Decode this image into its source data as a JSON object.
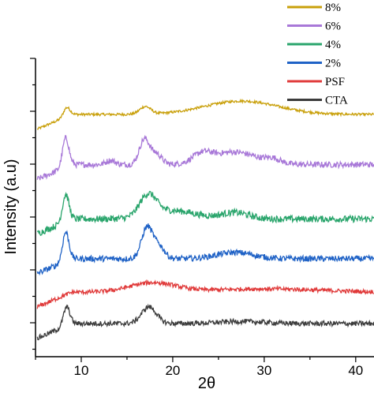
{
  "chart_data": {
    "type": "line",
    "xlabel": "2θ",
    "ylabel": "Intensity (a.u)",
    "xlim": [
      5,
      42
    ],
    "x_ticks": [
      10,
      20,
      30,
      40
    ],
    "y_ticks_shown": false,
    "legend_position": "top-right",
    "series": [
      {
        "name": "8%",
        "color": "#C9A00B",
        "offset": 5,
        "noise": 0.03,
        "peaks": [
          [
            8.4,
            0.22,
            0.35
          ],
          [
            17.0,
            0.18,
            0.6
          ],
          [
            27.5,
            0.32,
            4.0
          ]
        ]
      },
      {
        "name": "6%",
        "color": "#A878D8",
        "offset": 3.8,
        "noise": 0.07,
        "peaks": [
          [
            8.3,
            0.7,
            0.35
          ],
          [
            13.2,
            0.1,
            0.5
          ],
          [
            16.9,
            0.6,
            0.55
          ],
          [
            18.2,
            0.25,
            0.6
          ],
          [
            23.2,
            0.2,
            1.0
          ],
          [
            26.7,
            0.3,
            2.5
          ],
          [
            31.0,
            0.1,
            0.8
          ]
        ]
      },
      {
        "name": "4%",
        "color": "#2AA56C",
        "offset": 2.5,
        "noise": 0.08,
        "peaks": [
          [
            8.3,
            0.65,
            0.35
          ],
          [
            17.3,
            0.5,
            0.9
          ],
          [
            20.0,
            0.2,
            2.5
          ],
          [
            26.8,
            0.15,
            1.5
          ]
        ]
      },
      {
        "name": "2%",
        "color": "#1F62C6",
        "offset": 1.55,
        "noise": 0.07,
        "peaks": [
          [
            8.3,
            0.7,
            0.35
          ],
          [
            17.2,
            0.75,
            0.6
          ],
          [
            18.5,
            0.3,
            0.6
          ],
          [
            26.8,
            0.15,
            2.0
          ]
        ]
      },
      {
        "name": "PSF",
        "color": "#E03A3A",
        "offset": 0.75,
        "noise": 0.05,
        "peaks": [
          [
            17.8,
            0.22,
            2.5
          ],
          [
            30.0,
            0.08,
            6.0
          ]
        ]
      },
      {
        "name": "CTA",
        "color": "#3C3C3C",
        "offset": 0,
        "noise": 0.06,
        "peaks": [
          [
            8.4,
            0.45,
            0.35
          ],
          [
            17.4,
            0.4,
            0.8
          ],
          [
            27.5,
            0.05,
            2.5
          ]
        ]
      }
    ]
  }
}
